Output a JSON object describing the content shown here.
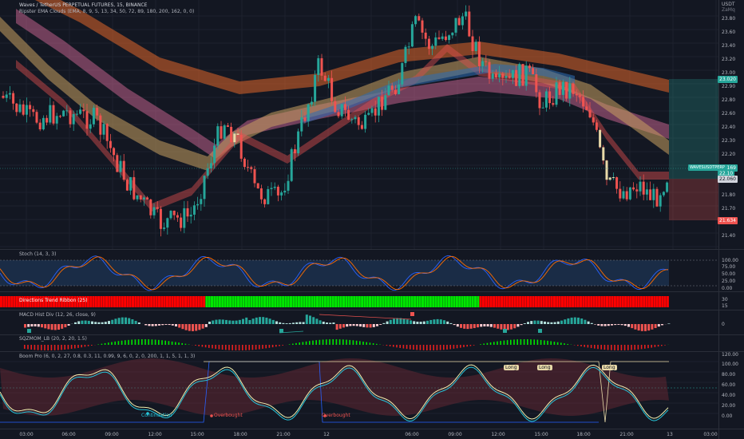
{
  "main": {
    "title": "Waves / TetherUS PERPETUAL FUTURES, 15, BINANCE",
    "indicator": "Ripster EMA Clouds (EMA, 8, 9, 5, 13, 34, 50, 72, 89, 180, 200, 162, 0, 0)",
    "currency": "USDT",
    "currency_sub": "ZaMq",
    "price_ticks": [
      "23.80",
      "23.60",
      "23.40",
      "23.20",
      "23.00",
      "22.90",
      "22.80",
      "22.60",
      "22.40",
      "22.30",
      "22.20",
      "22.00",
      "21.90",
      "21.80",
      "21.70",
      "21.60",
      "21.40"
    ],
    "label_target": "23.020",
    "label_pair": "WAVESUSDTPERP",
    "label_last": "22.169",
    "label_last2": "22.10",
    "label_entry": "22.060",
    "label_stop": "21.634",
    "colors": {
      "up": "#26a69a",
      "down": "#ef5350",
      "bg": "#131722"
    }
  },
  "stoch": {
    "title": "Stoch (14, 3, 3)",
    "ticks": [
      "100.00",
      "75.00",
      "50.00",
      "25.00",
      "0.00"
    ]
  },
  "dtr": {
    "title": "Directions Trend Ribbon (25)",
    "ticks": [
      "30",
      "15"
    ]
  },
  "macd": {
    "title": "MACD Hist Div (12, 26, close, 9)",
    "ticks": [
      "0"
    ]
  },
  "sqz": {
    "title": "SQZMOM_LB (20, 2, 20, 1.5)"
  },
  "boom": {
    "title": "Boom Pro (6, 0, 2, 27, 0.8, 0.3, 11, 0.99, 9, 6, 0, 2, 0, 200, 1, 1, 5, 1, 1, 3)",
    "ticks": [
      "120.00",
      "100.00",
      "80.00",
      "60.00",
      "40.00",
      "20.00",
      "0.00"
    ],
    "labels": [
      "Continuation",
      "Overbought",
      "Overbought"
    ],
    "tags": [
      "Long",
      "Long",
      "Long"
    ]
  },
  "time_axis": [
    "03:00",
    "06:00",
    "09:00",
    "12:00",
    "15:00",
    "18:00",
    "21:00",
    "12",
    "06:00",
    "09:00",
    "12:00",
    "15:00",
    "18:00",
    "21:00",
    "13",
    "03:00"
  ]
}
